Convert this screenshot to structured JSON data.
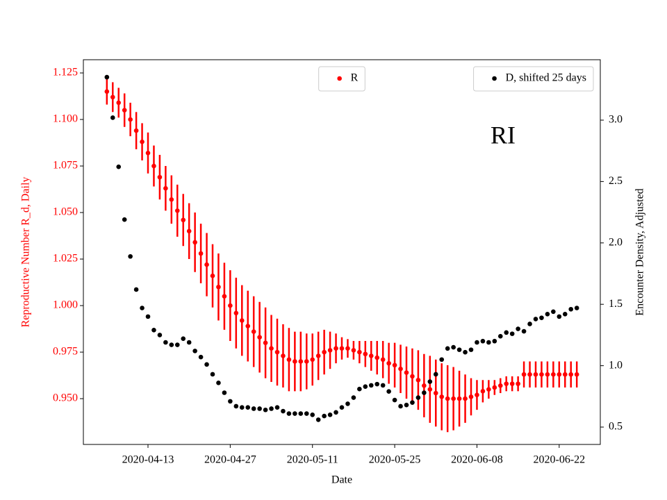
{
  "chart_data": {
    "type": "scatter",
    "annotation": "RI",
    "xlabel": "Date",
    "ylabel": "Reproductive Number R_d, Daily",
    "y2label": "Encounter Density, Adjusted",
    "xlim": [
      "2020-04-02",
      "2020-06-29"
    ],
    "xticks": [
      "2020-04-13",
      "2020-04-27",
      "2020-05-11",
      "2020-05-25",
      "2020-06-08",
      "2020-06-22"
    ],
    "ylim": [
      0.9254,
      1.1321
    ],
    "yticks": [
      {
        "value": 0.95,
        "label": "0.950"
      },
      0.975,
      {
        "value": 1.0,
        "label": "1.000"
      },
      1.025,
      {
        "value": 1.05,
        "label": "1.050"
      },
      1.075,
      {
        "value": 1.1,
        "label": "1.100"
      },
      1.125
    ],
    "y2lim": [
      0.3586,
      3.492
    ],
    "y2ticks": [
      0.5,
      {
        "value": 1.0,
        "label": "1.0"
      },
      1.5,
      {
        "value": 2.0,
        "label": "2.0"
      },
      2.5,
      {
        "value": 3.0,
        "label": "3.0"
      }
    ],
    "x": [
      "2020-04-06",
      "2020-04-07",
      "2020-04-08",
      "2020-04-09",
      "2020-04-10",
      "2020-04-11",
      "2020-04-12",
      "2020-04-13",
      "2020-04-14",
      "2020-04-15",
      "2020-04-16",
      "2020-04-17",
      "2020-04-18",
      "2020-04-19",
      "2020-04-20",
      "2020-04-21",
      "2020-04-22",
      "2020-04-23",
      "2020-04-24",
      "2020-04-25",
      "2020-04-26",
      "2020-04-27",
      "2020-04-28",
      "2020-04-29",
      "2020-04-30",
      "2020-05-01",
      "2020-05-02",
      "2020-05-03",
      "2020-05-04",
      "2020-05-05",
      "2020-05-06",
      "2020-05-07",
      "2020-05-08",
      "2020-05-09",
      "2020-05-10",
      "2020-05-11",
      "2020-05-12",
      "2020-05-13",
      "2020-05-14",
      "2020-05-15",
      "2020-05-16",
      "2020-05-17",
      "2020-05-18",
      "2020-05-19",
      "2020-05-20",
      "2020-05-21",
      "2020-05-22",
      "2020-05-23",
      "2020-05-24",
      "2020-05-25",
      "2020-05-26",
      "2020-05-27",
      "2020-05-28",
      "2020-05-29",
      "2020-05-30",
      "2020-05-31",
      "2020-06-01",
      "2020-06-02",
      "2020-06-03",
      "2020-06-04",
      "2020-06-05",
      "2020-06-06",
      "2020-06-07",
      "2020-06-08",
      "2020-06-09",
      "2020-06-10",
      "2020-06-11",
      "2020-06-12",
      "2020-06-13",
      "2020-06-14",
      "2020-06-15",
      "2020-06-16",
      "2020-06-17",
      "2020-06-18",
      "2020-06-19",
      "2020-06-20",
      "2020-06-21",
      "2020-06-22",
      "2020-06-23",
      "2020-06-24",
      "2020-06-25"
    ],
    "series": [
      {
        "name": "R",
        "color": "#ff0000",
        "axis": "y",
        "legend_loc": "upper center",
        "values": [
          1.115,
          1.112,
          1.109,
          1.105,
          1.1,
          1.094,
          1.088,
          1.082,
          1.075,
          1.069,
          1.063,
          1.057,
          1.051,
          1.046,
          1.04,
          1.034,
          1.028,
          1.022,
          1.016,
          1.01,
          1.005,
          1.0,
          0.996,
          0.992,
          0.989,
          0.986,
          0.983,
          0.98,
          0.977,
          0.975,
          0.973,
          0.971,
          0.97,
          0.97,
          0.97,
          0.971,
          0.973,
          0.975,
          0.976,
          0.977,
          0.977,
          0.977,
          0.976,
          0.975,
          0.974,
          0.973,
          0.972,
          0.971,
          0.969,
          0.968,
          0.966,
          0.964,
          0.962,
          0.96,
          0.957,
          0.955,
          0.953,
          0.951,
          0.95,
          0.95,
          0.95,
          0.95,
          0.951,
          0.952,
          0.954,
          0.955,
          0.956,
          0.957,
          0.958,
          0.958,
          0.958,
          0.963,
          0.963,
          0.963,
          0.963,
          0.963,
          0.963,
          0.963,
          0.963,
          0.963,
          0.963
        ],
        "errors": [
          0.007,
          0.008,
          0.008,
          0.009,
          0.009,
          0.01,
          0.01,
          0.011,
          0.011,
          0.012,
          0.012,
          0.013,
          0.014,
          0.014,
          0.015,
          0.016,
          0.016,
          0.017,
          0.017,
          0.018,
          0.018,
          0.019,
          0.019,
          0.019,
          0.019,
          0.019,
          0.019,
          0.019,
          0.018,
          0.018,
          0.017,
          0.017,
          0.016,
          0.016,
          0.015,
          0.014,
          0.013,
          0.012,
          0.01,
          0.008,
          0.006,
          0.005,
          0.005,
          0.006,
          0.007,
          0.008,
          0.009,
          0.01,
          0.011,
          0.012,
          0.013,
          0.014,
          0.015,
          0.016,
          0.017,
          0.018,
          0.018,
          0.018,
          0.018,
          0.017,
          0.015,
          0.013,
          0.01,
          0.008,
          0.006,
          0.005,
          0.004,
          0.004,
          0.004,
          0.004,
          0.004,
          0.007,
          0.007,
          0.007,
          0.007,
          0.007,
          0.007,
          0.007,
          0.007,
          0.007,
          0.007
        ]
      },
      {
        "name": "D, shifted 25 days",
        "color": "#000000",
        "axis": "y2",
        "legend_loc": "upper right",
        "values": [
          3.35,
          3.02,
          2.62,
          2.19,
          1.89,
          1.62,
          1.47,
          1.4,
          1.29,
          1.25,
          1.19,
          1.17,
          1.17,
          1.22,
          1.19,
          1.12,
          1.07,
          1.01,
          0.93,
          0.86,
          0.78,
          0.71,
          0.67,
          0.66,
          0.66,
          0.65,
          0.65,
          0.64,
          0.65,
          0.66,
          0.63,
          0.61,
          0.61,
          0.61,
          0.61,
          0.6,
          0.56,
          0.59,
          0.6,
          0.62,
          0.66,
          0.69,
          0.74,
          0.81,
          0.83,
          0.84,
          0.85,
          0.84,
          0.79,
          0.72,
          0.67,
          0.68,
          0.7,
          0.74,
          0.78,
          0.87,
          0.93,
          1.05,
          1.14,
          1.15,
          1.13,
          1.11,
          1.13,
          1.19,
          1.2,
          1.19,
          1.2,
          1.24,
          1.27,
          1.26,
          1.3,
          1.28,
          1.34,
          1.38,
          1.39,
          1.42,
          1.44,
          1.4,
          1.42,
          1.46,
          1.47
        ]
      }
    ]
  }
}
